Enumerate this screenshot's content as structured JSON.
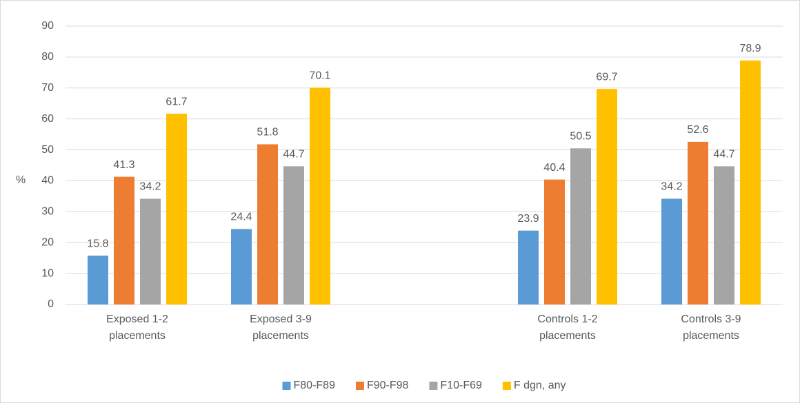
{
  "chart_data": {
    "type": "bar",
    "y_label": "%",
    "categories": [
      "Exposed 1-2 placements",
      "Exposed 3-9 placements",
      null,
      "Controls 1-2 placements",
      "Controls 3-9 placements"
    ],
    "series": [
      {
        "name": "F80-F89",
        "color": "#5b9bd5",
        "values": [
          15.8,
          24.4,
          null,
          23.9,
          34.2
        ]
      },
      {
        "name": "F90-F98",
        "color": "#ed7d31",
        "values": [
          41.3,
          51.8,
          null,
          40.4,
          52.6
        ]
      },
      {
        "name": "F10-F69",
        "color": "#a5a5a5",
        "values": [
          34.2,
          44.7,
          null,
          50.5,
          44.7
        ]
      },
      {
        "name": "F dgn, any",
        "color": "#ffc000",
        "values": [
          61.7,
          70.1,
          null,
          69.7,
          78.9
        ]
      }
    ],
    "ylim": [
      0,
      90
    ],
    "yticks": [
      0,
      10,
      20,
      30,
      40,
      50,
      60,
      70,
      80,
      90
    ],
    "grid": true,
    "legend": "bottom"
  }
}
